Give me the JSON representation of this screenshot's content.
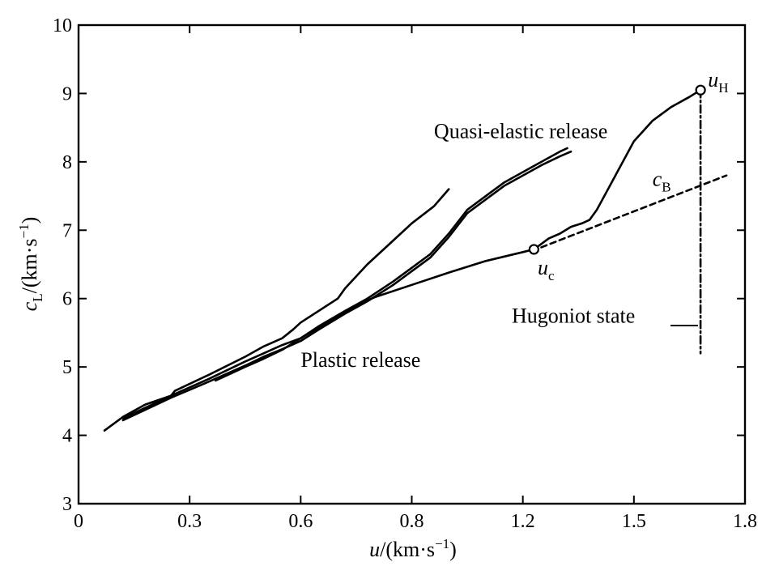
{
  "chart_data": {
    "type": "line",
    "xlabel": "u/(km·s⁻¹)",
    "ylabel": "c_L/(km·s⁻¹)",
    "xlim": [
      0,
      1.8
    ],
    "ylim": [
      3,
      10
    ],
    "x_ticks": [
      "0",
      "0.3",
      "0.6",
      "0.8",
      "1.2",
      "1.5",
      "1.8"
    ],
    "y_ticks": [
      "3",
      "4",
      "5",
      "6",
      "7",
      "8",
      "9",
      "10"
    ],
    "grid": false,
    "series": [
      {
        "style": "solid",
        "x": [
          0.07,
          0.12,
          0.18,
          0.25,
          0.26,
          0.35,
          0.45,
          0.5,
          0.55,
          0.58,
          0.6,
          0.7,
          0.72,
          0.78,
          0.85,
          0.9,
          0.96,
          1.0
        ],
        "y": [
          4.07,
          4.27,
          4.45,
          4.58,
          4.65,
          4.88,
          5.15,
          5.3,
          5.42,
          5.55,
          5.65,
          6.0,
          6.15,
          6.5,
          6.85,
          7.1,
          7.35,
          7.6
        ]
      },
      {
        "style": "solid",
        "x": [
          0.12,
          0.25,
          0.35,
          0.45,
          0.5,
          0.55,
          0.6,
          0.65,
          0.72,
          0.78,
          0.85,
          0.9,
          0.95,
          1.0,
          1.05,
          1.1,
          1.15,
          1.2,
          1.25,
          1.3,
          1.32
        ],
        "y": [
          4.25,
          4.58,
          4.82,
          5.08,
          5.2,
          5.32,
          5.42,
          5.6,
          5.82,
          6.0,
          6.25,
          6.45,
          6.65,
          6.95,
          7.3,
          7.5,
          7.7,
          7.85,
          8.0,
          8.15,
          8.2
        ]
      },
      {
        "style": "solid",
        "x": [
          0.12,
          0.25,
          0.35,
          0.45,
          0.5,
          0.55,
          0.6,
          0.65,
          0.72,
          0.78,
          0.85,
          0.9,
          0.95,
          1.0,
          1.05,
          1.1,
          1.15,
          1.2,
          1.25,
          1.3,
          1.33
        ],
        "y": [
          4.22,
          4.55,
          4.78,
          5.02,
          5.15,
          5.26,
          5.38,
          5.55,
          5.78,
          5.96,
          6.2,
          6.4,
          6.6,
          6.9,
          7.25,
          7.45,
          7.65,
          7.8,
          7.95,
          8.08,
          8.15
        ]
      },
      {
        "style": "solid",
        "x": [
          0.37,
          0.45,
          0.5,
          0.55,
          0.6,
          0.65,
          0.7,
          0.75,
          0.8,
          0.9,
          1.0,
          1.1,
          1.2,
          1.23
        ],
        "y": [
          4.8,
          5.0,
          5.12,
          5.25,
          5.42,
          5.58,
          5.74,
          5.9,
          6.02,
          6.2,
          6.38,
          6.55,
          6.68,
          6.72
        ]
      },
      {
        "style": "solid",
        "x": [
          1.23,
          1.27,
          1.3,
          1.33,
          1.36,
          1.38,
          1.4,
          1.45,
          1.5,
          1.55,
          1.6,
          1.65,
          1.68
        ],
        "y": [
          6.72,
          6.88,
          6.95,
          7.05,
          7.1,
          7.15,
          7.3,
          7.8,
          8.3,
          8.6,
          8.8,
          8.95,
          9.05
        ]
      },
      {
        "style": "dashed",
        "x": [
          1.25,
          1.75
        ],
        "y": [
          6.75,
          7.8
        ]
      },
      {
        "style": "dashdot",
        "x": [
          1.68,
          1.68
        ],
        "y": [
          9.05,
          5.2
        ]
      }
    ],
    "markers": [
      {
        "x": 1.23,
        "y": 6.72
      },
      {
        "x": 1.68,
        "y": 9.05
      }
    ],
    "annotations": [
      {
        "text": "Quasi-elastic release",
        "x": 0.96,
        "y": 8.35
      },
      {
        "text": "Plastic release",
        "x": 0.6,
        "y": 5.0
      },
      {
        "text": "Hugoniot state",
        "x": 1.17,
        "y": 5.65
      },
      {
        "text": "c_B",
        "x": 1.55,
        "y": 7.65
      },
      {
        "text": "u_c",
        "x": 1.24,
        "y": 6.35
      },
      {
        "text": "u_H",
        "x": 1.7,
        "y": 9.1
      }
    ]
  }
}
